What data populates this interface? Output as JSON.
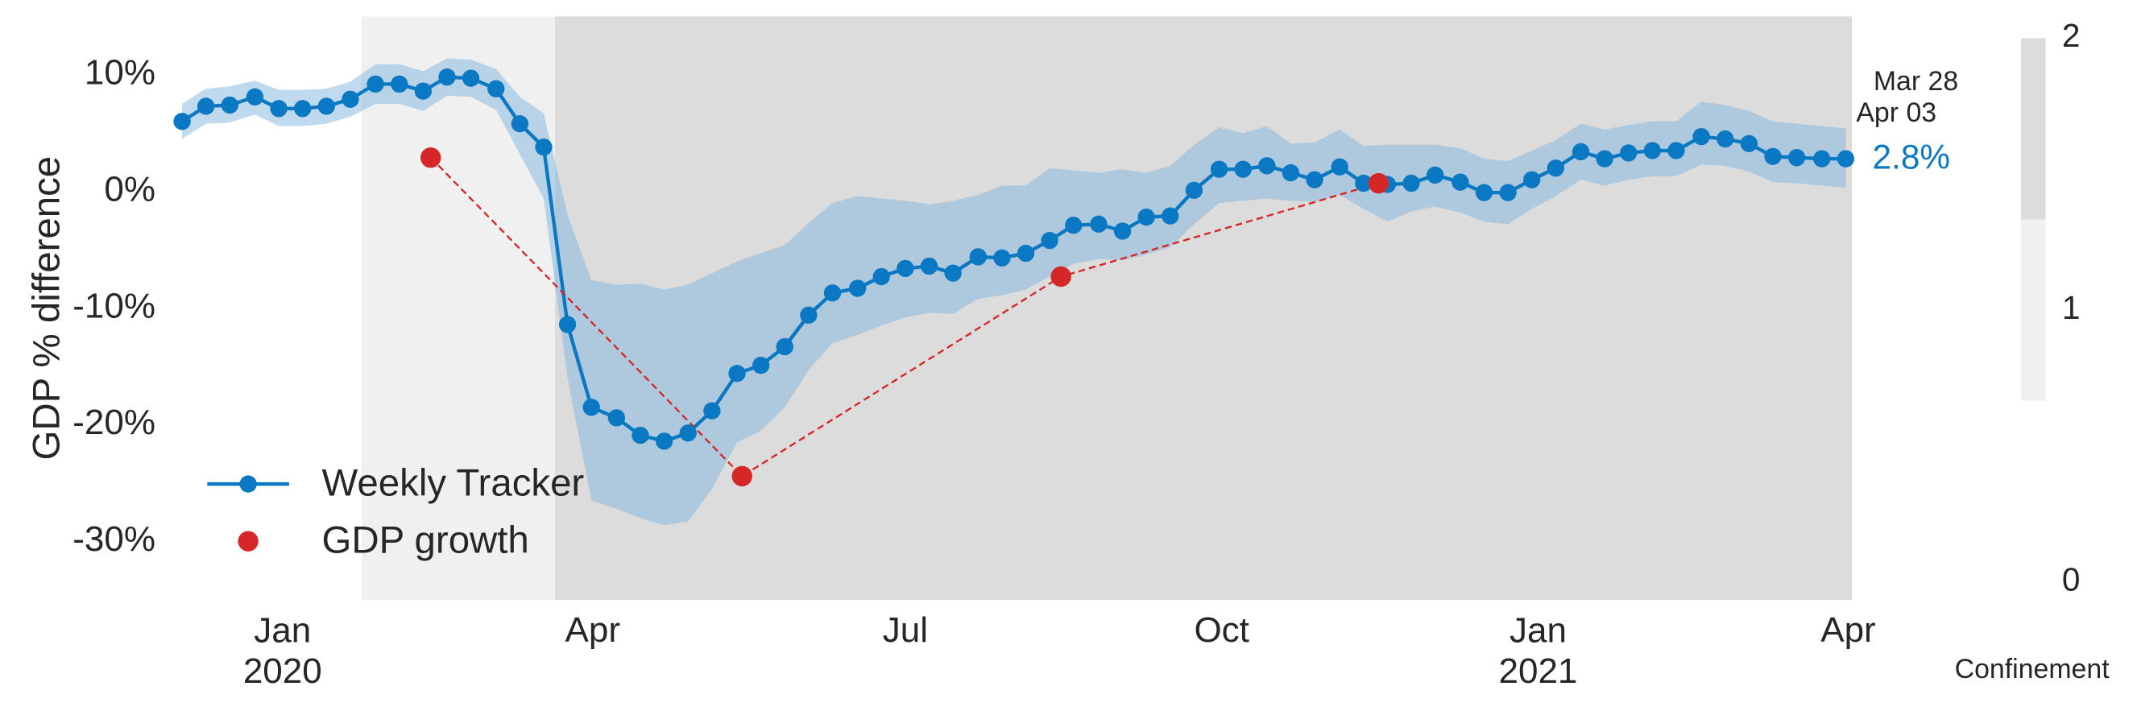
{
  "chart_data": {
    "type": "line",
    "ylabel": "GDP % difference",
    "xlim": [
      2019.914,
      2021.25
    ],
    "ylim": [
      -35,
      15
    ],
    "xticks": [
      {
        "value": 2020,
        "label": "Jan\n2020"
      },
      {
        "value": 2020.247,
        "label": "Apr"
      },
      {
        "value": 2020.496,
        "label": "Jul"
      },
      {
        "value": 2020.748,
        "label": "Oct"
      },
      {
        "value": 2021,
        "label": "Jan\n2021"
      },
      {
        "value": 2021.247,
        "label": "Apr"
      }
    ],
    "yticks": [
      {
        "value": 10,
        "label": "10%"
      },
      {
        "value": 0,
        "label": "0%"
      },
      {
        "value": -10,
        "label": "-10%"
      },
      {
        "value": -20,
        "label": "-20%"
      },
      {
        "value": -30,
        "label": "-30%"
      }
    ],
    "grid": false,
    "legend": "lower left",
    "shading": [
      {
        "x": [
          2020.063,
          2020.217
        ],
        "level": 1
      },
      {
        "x": [
          2020.217,
          2021.25
        ],
        "level": 2
      }
    ],
    "colorbar": {
      "label": "Confinement",
      "clim": [
        0,
        2
      ],
      "ticks": [
        0,
        1,
        2
      ],
      "colors": [
        "#ffffff",
        "#f0f0f0",
        "#dcdcdc"
      ]
    },
    "annotations": [
      "Mar 28",
      "Apr 03",
      "2.8%"
    ],
    "series": [
      {
        "name": "Weekly Tracker",
        "color": "#0a78c2",
        "band_color": "#7fb6dd",
        "linestyle": "solid",
        "marker": true,
        "x": [
          2019.92,
          2019.939,
          2019.958,
          2019.978,
          2019.997,
          2020.016,
          2020.035,
          2020.054,
          2020.074,
          2020.093,
          2020.112,
          2020.131,
          2020.15,
          2020.17,
          2020.189,
          2020.208,
          2020.227,
          2020.246,
          2020.266,
          2020.285,
          2020.304,
          2020.323,
          2020.342,
          2020.362,
          2020.381,
          2020.4,
          2020.419,
          2020.438,
          2020.458,
          2020.477,
          2020.496,
          2020.515,
          2020.534,
          2020.554,
          2020.573,
          2020.592,
          2020.611,
          2020.63,
          2020.65,
          2020.669,
          2020.688,
          2020.707,
          2020.726,
          2020.746,
          2020.765,
          2020.784,
          2020.803,
          2020.822,
          2020.842,
          2020.861,
          2020.88,
          2020.899,
          2020.918,
          2020.938,
          2020.957,
          2020.976,
          2020.995,
          2021.014,
          2021.034,
          2021.053,
          2021.072,
          2021.091,
          2021.11,
          2021.13,
          2021.149,
          2021.168,
          2021.187,
          2021.206,
          2021.226,
          2021.245
        ],
        "values": [
          6.0,
          7.3,
          7.4,
          8.1,
          7.1,
          7.1,
          7.3,
          7.9,
          9.2,
          9.2,
          8.6,
          9.8,
          9.7,
          8.8,
          5.8,
          3.8,
          -11.4,
          -18.5,
          -19.4,
          -20.9,
          -21.4,
          -20.7,
          -18.8,
          -15.6,
          -14.9,
          -13.3,
          -10.6,
          -8.7,
          -8.3,
          -7.3,
          -6.6,
          -6.4,
          -7.0,
          -5.6,
          -5.7,
          -5.3,
          -4.2,
          -2.9,
          -2.8,
          -3.4,
          -2.2,
          -2.1,
          0.1,
          1.9,
          1.9,
          2.2,
          1.6,
          1.0,
          2.1,
          0.7,
          0.6,
          0.7,
          1.4,
          0.8,
          -0.1,
          -0.1,
          1.0,
          2.0,
          3.4,
          2.8,
          3.3,
          3.5,
          3.5,
          4.7,
          4.5,
          4.1,
          3.0,
          2.9,
          2.8,
          2.8
        ],
        "upper": [
          7.5,
          8.8,
          9.0,
          9.5,
          8.7,
          8.7,
          8.8,
          9.4,
          10.9,
          10.9,
          10.3,
          11.4,
          11.3,
          10.5,
          8.1,
          6.7,
          -2.0,
          -7.6,
          -8.0,
          -7.9,
          -8.4,
          -8.0,
          -7.0,
          -6.0,
          -5.3,
          -4.6,
          -2.7,
          -1.0,
          -0.4,
          -0.6,
          -0.8,
          -1.1,
          -0.8,
          -0.3,
          0.5,
          0.5,
          2.0,
          1.8,
          1.6,
          1.9,
          1.6,
          2.2,
          4.0,
          5.5,
          5.0,
          5.6,
          4.1,
          4.2,
          5.3,
          3.9,
          4.0,
          4.0,
          4.0,
          3.7,
          2.8,
          2.6,
          3.5,
          4.4,
          5.8,
          5.3,
          5.7,
          6.0,
          6.0,
          7.7,
          7.4,
          6.9,
          6.0,
          5.8,
          5.6,
          5.4
        ],
        "lower": [
          4.5,
          5.8,
          5.9,
          6.6,
          5.6,
          5.6,
          5.8,
          6.4,
          7.5,
          7.5,
          6.9,
          8.2,
          8.1,
          7.0,
          3.2,
          -0.6,
          -16.0,
          -26.5,
          -27.2,
          -28.0,
          -28.6,
          -28.3,
          -25.5,
          -21.5,
          -20.5,
          -18.5,
          -15.3,
          -13.0,
          -12.3,
          -11.5,
          -10.8,
          -10.4,
          -10.5,
          -9.2,
          -8.9,
          -8.4,
          -7.3,
          -6.2,
          -5.8,
          -5.9,
          -5.4,
          -4.8,
          -2.8,
          -1.0,
          -0.8,
          -0.6,
          -0.8,
          -0.9,
          -0.3,
          -1.5,
          -2.6,
          -1.7,
          -1.3,
          -1.8,
          -2.6,
          -2.8,
          -1.5,
          -0.4,
          1.0,
          0.5,
          1.0,
          1.3,
          1.3,
          2.3,
          2.2,
          1.7,
          0.8,
          0.7,
          0.5,
          0.3
        ]
      },
      {
        "name": "GDP growth",
        "color": "#d62728",
        "linestyle": "dashed",
        "marker": true,
        "x": [
          2020.118,
          2020.366,
          2020.62,
          2020.873
        ],
        "values": [
          2.9,
          -24.4,
          -7.3,
          0.7
        ]
      }
    ]
  }
}
